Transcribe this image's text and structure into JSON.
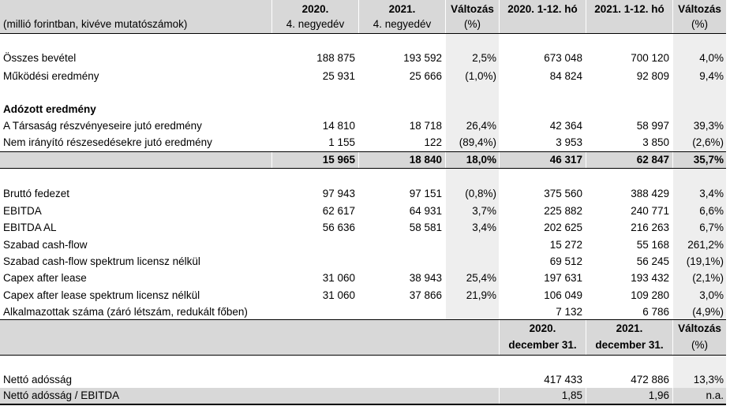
{
  "header": {
    "unit_label": "(millió forintban, kivéve mutatószámok)",
    "columns": [
      {
        "line1": "2020.",
        "line2": "4. negyedév"
      },
      {
        "line1": "2021.",
        "line2": "4. negyedév"
      },
      {
        "line1": "Változás",
        "line2": "(%)"
      },
      {
        "line1": "2020. 1-12. hó",
        "line2": ""
      },
      {
        "line1": "2021. 1-12. hó",
        "line2": ""
      },
      {
        "line1": "Változás",
        "line2": "(%)"
      }
    ]
  },
  "rows": {
    "osszes_bevetel": {
      "label": "Összes bevétel",
      "values": [
        "188 875",
        "193 592",
        "2,5%",
        "673 048",
        "700 120",
        "4,0%"
      ]
    },
    "mukodesi": {
      "label": "Működési eredmény",
      "values": [
        "25 931",
        "25 666",
        "(1,0%)",
        "84 824",
        "92 809",
        "9,4%"
      ]
    },
    "adozott_title": {
      "label": "Adózott eredmény"
    },
    "tarsasag": {
      "label": "A Társaság részvényeseire jutó eredmény",
      "values": [
        "14 810",
        "18 718",
        "26,4%",
        "42 364",
        "58 997",
        "39,3%"
      ]
    },
    "nem_iranyito": {
      "label": "Nem irányító részesedésekre jutó eredmény",
      "values": [
        "1 155",
        "122",
        "(89,4%)",
        "3 953",
        "3 850",
        "(2,6%)"
      ]
    },
    "adozott_total": {
      "values": [
        "15 965",
        "18 840",
        "18,0%",
        "46 317",
        "62 847",
        "35,7%"
      ]
    },
    "brutto": {
      "label": "Bruttó fedezet",
      "values": [
        "97 943",
        "97 151",
        "(0,8%)",
        "375 560",
        "388 429",
        "3,4%"
      ]
    },
    "ebitda": {
      "label": "EBITDA",
      "values": [
        "62 617",
        "64 931",
        "3,7%",
        "225 882",
        "240 771",
        "6,6%"
      ]
    },
    "ebitda_al": {
      "label": "EBITDA AL",
      "values": [
        "56 636",
        "58 581",
        "3,4%",
        "202 625",
        "216 263",
        "6,7%"
      ]
    },
    "szabad_cf": {
      "label": "Szabad cash-flow",
      "values": [
        "",
        "",
        "",
        "15 272",
        "55 168",
        "261,2%"
      ]
    },
    "szabad_cf_spektrum": {
      "label": "Szabad cash-flow spektrum licensz nélkül",
      "values": [
        "",
        "",
        "",
        "69 512",
        "56 245",
        "(19,1%)"
      ]
    },
    "capex": {
      "label": "Capex after lease",
      "values": [
        "31 060",
        "38 943",
        "25,4%",
        "197 631",
        "193 432",
        "(2,1%)"
      ]
    },
    "capex_spektrum": {
      "label": "Capex after lease spektrum licensz nélkül",
      "values": [
        "31 060",
        "37 866",
        "21,9%",
        "106 049",
        "109 280",
        "3,0%"
      ]
    },
    "alkalmazottak": {
      "label": "Alkalmazottak száma (záró létszám, redukált főben)",
      "values": [
        "",
        "",
        "",
        "7 132",
        "6 786",
        "(4,9%)"
      ]
    }
  },
  "subheader": {
    "columns": [
      {
        "line1": "2020.",
        "line2": "december 31."
      },
      {
        "line1": "2021.",
        "line2": "december 31."
      },
      {
        "line1": "Változás",
        "line2": "(%)"
      }
    ]
  },
  "net_debt": {
    "netto_adossag": {
      "label": "Nettó adósság",
      "values": [
        "417 433",
        "472 886",
        "13,3%"
      ]
    },
    "netto_ebitda": {
      "label": "Nettó adósság / EBITDA",
      "values": [
        "1,85",
        "1,96",
        "n.a."
      ]
    }
  }
}
